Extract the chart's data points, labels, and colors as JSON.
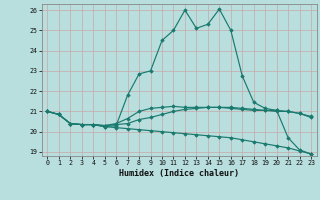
{
  "xlabel": "Humidex (Indice chaleur)",
  "xlim": [
    -0.5,
    23.5
  ],
  "ylim": [
    18.8,
    26.3
  ],
  "xticks": [
    0,
    1,
    2,
    3,
    4,
    5,
    6,
    7,
    8,
    9,
    10,
    11,
    12,
    13,
    14,
    15,
    16,
    17,
    18,
    19,
    20,
    21,
    22,
    23
  ],
  "yticks": [
    19,
    20,
    21,
    22,
    23,
    24,
    25,
    26
  ],
  "background_color": "#b8dede",
  "grid_color": "#c8a8a8",
  "line_color": "#1a7a6e",
  "lines": [
    {
      "x": [
        0,
        1,
        2,
        3,
        4,
        5,
        6,
        7,
        8,
        9,
        10,
        11,
        12,
        13,
        14,
        15,
        16,
        17,
        18,
        19,
        20,
        21,
        22,
        23
      ],
      "y": [
        21.0,
        20.85,
        20.4,
        20.35,
        20.35,
        20.25,
        20.3,
        21.8,
        22.85,
        23.0,
        24.5,
        25.0,
        26.0,
        25.1,
        25.3,
        26.05,
        25.0,
        22.75,
        21.45,
        21.15,
        21.05,
        19.7,
        19.1,
        18.9
      ]
    },
    {
      "x": [
        0,
        1,
        2,
        3,
        4,
        5,
        6,
        7,
        8,
        9,
        10,
        11,
        12,
        13,
        14,
        15,
        16,
        17,
        18,
        19,
        20,
        21,
        22,
        23
      ],
      "y": [
        21.0,
        20.85,
        20.4,
        20.35,
        20.35,
        20.3,
        20.35,
        20.4,
        20.6,
        20.7,
        20.85,
        21.0,
        21.1,
        21.15,
        21.2,
        21.2,
        21.2,
        21.15,
        21.1,
        21.05,
        21.0,
        21.0,
        20.9,
        20.7
      ]
    },
    {
      "x": [
        0,
        1,
        2,
        3,
        4,
        5,
        6,
        7,
        8,
        9,
        10,
        11,
        12,
        13,
        14,
        15,
        16,
        17,
        18,
        19,
        20,
        21,
        22,
        23
      ],
      "y": [
        21.0,
        20.85,
        20.4,
        20.35,
        20.35,
        20.25,
        20.2,
        20.15,
        20.1,
        20.05,
        20.0,
        19.95,
        19.9,
        19.85,
        19.8,
        19.75,
        19.7,
        19.6,
        19.5,
        19.4,
        19.3,
        19.2,
        19.05,
        18.9
      ]
    },
    {
      "x": [
        0,
        1,
        2,
        3,
        4,
        5,
        6,
        7,
        8,
        9,
        10,
        11,
        12,
        13,
        14,
        15,
        16,
        17,
        18,
        19,
        20,
        21,
        22,
        23
      ],
      "y": [
        21.0,
        20.85,
        20.4,
        20.35,
        20.35,
        20.3,
        20.4,
        20.65,
        21.0,
        21.15,
        21.2,
        21.25,
        21.2,
        21.2,
        21.2,
        21.2,
        21.15,
        21.1,
        21.05,
        21.05,
        21.05,
        21.0,
        20.9,
        20.75
      ]
    }
  ]
}
